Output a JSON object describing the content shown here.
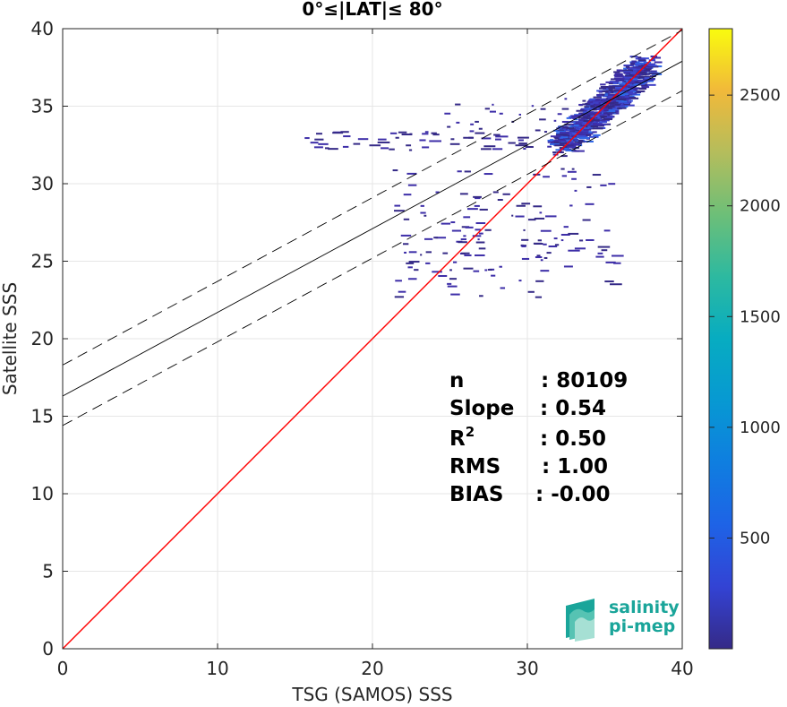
{
  "chart_data": {
    "type": "heatmap",
    "title": "0°≤|LAT|≤ 80°",
    "xlabel": "TSG (SAMOS) SSS",
    "ylabel": "Satellite SSS",
    "xlim": [
      0,
      40
    ],
    "ylim": [
      0,
      40
    ],
    "x_ticks": [
      0,
      10,
      20,
      30,
      40
    ],
    "y_ticks": [
      0,
      5,
      10,
      15,
      20,
      25,
      30,
      35,
      40
    ],
    "grid": true,
    "colormap": "parula",
    "colorbar": {
      "range": [
        0,
        2800
      ],
      "ticks": [
        500,
        1000,
        1500,
        2000,
        2500
      ]
    },
    "lines": [
      {
        "style": "red-solid",
        "color": "#ff0000",
        "slope": 1.0,
        "intercept": 0.0
      },
      {
        "style": "black-solid",
        "color": "#000000",
        "slope": 0.54,
        "intercept": 16.3
      },
      {
        "style": "black-dashed-upper",
        "color": "#000000",
        "slope": 0.54,
        "intercept": 18.3
      },
      {
        "style": "black-dashed-lower",
        "color": "#000000",
        "slope": 0.54,
        "intercept": 14.4
      }
    ],
    "stats": [
      {
        "label": "n",
        "value": ": 80109"
      },
      {
        "label": "Slope",
        "value": ": 0.54"
      },
      {
        "label": "R",
        "sup": "2",
        "value": ": 0.50"
      },
      {
        "label": "RMS",
        "value": ": 1.00"
      },
      {
        "label": "BIAS",
        "value": ": -0.00"
      }
    ]
  },
  "logo": {
    "line1": "salinity",
    "line2": "pi-mep"
  }
}
